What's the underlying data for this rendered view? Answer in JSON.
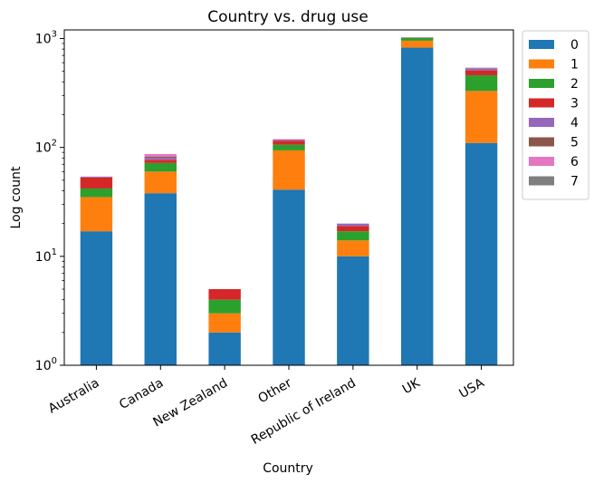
{
  "chart_data": {
    "type": "bar",
    "stacked": true,
    "title": "Country vs. drug use",
    "xlabel": "Country",
    "ylabel": "Log count",
    "yscale": "log",
    "ylim": [
      1,
      1200
    ],
    "y_ticks": [
      {
        "value": 1,
        "base": "10",
        "exp": "0"
      },
      {
        "value": 10,
        "base": "10",
        "exp": "1"
      },
      {
        "value": 100,
        "base": "10",
        "exp": "2"
      },
      {
        "value": 1000,
        "base": "10",
        "exp": "3"
      }
    ],
    "grid": false,
    "legend_position": "outside-right-top",
    "categories": [
      "Australia",
      "Canada",
      "New Zealand",
      "Other",
      "Republic of Ireland",
      "UK",
      "USA"
    ],
    "series": [
      {
        "name": "0",
        "color": "#1f77b4",
        "values": [
          17,
          38,
          2,
          41,
          10,
          825,
          110
        ]
      },
      {
        "name": "1",
        "color": "#ff7f0e",
        "values": [
          18,
          22,
          1,
          53,
          4,
          130,
          220
        ]
      },
      {
        "name": "2",
        "color": "#2ca02c",
        "values": [
          7,
          12,
          1,
          12,
          3,
          60,
          130
        ]
      },
      {
        "name": "3",
        "color": "#d62728",
        "values": [
          11,
          5,
          1,
          9,
          2,
          5,
          50
        ]
      },
      {
        "name": "4",
        "color": "#9467bd",
        "values": [
          1,
          3,
          0,
          2,
          1,
          3,
          20
        ]
      },
      {
        "name": "5",
        "color": "#8c564b",
        "values": [
          0,
          2,
          0,
          1,
          0,
          1,
          5
        ]
      },
      {
        "name": "6",
        "color": "#e377c2",
        "values": [
          0,
          5,
          0,
          1,
          0,
          1,
          5
        ]
      },
      {
        "name": "7",
        "color": "#7f7f7f",
        "values": [
          0,
          0,
          0,
          0,
          0,
          1,
          1
        ]
      }
    ]
  }
}
